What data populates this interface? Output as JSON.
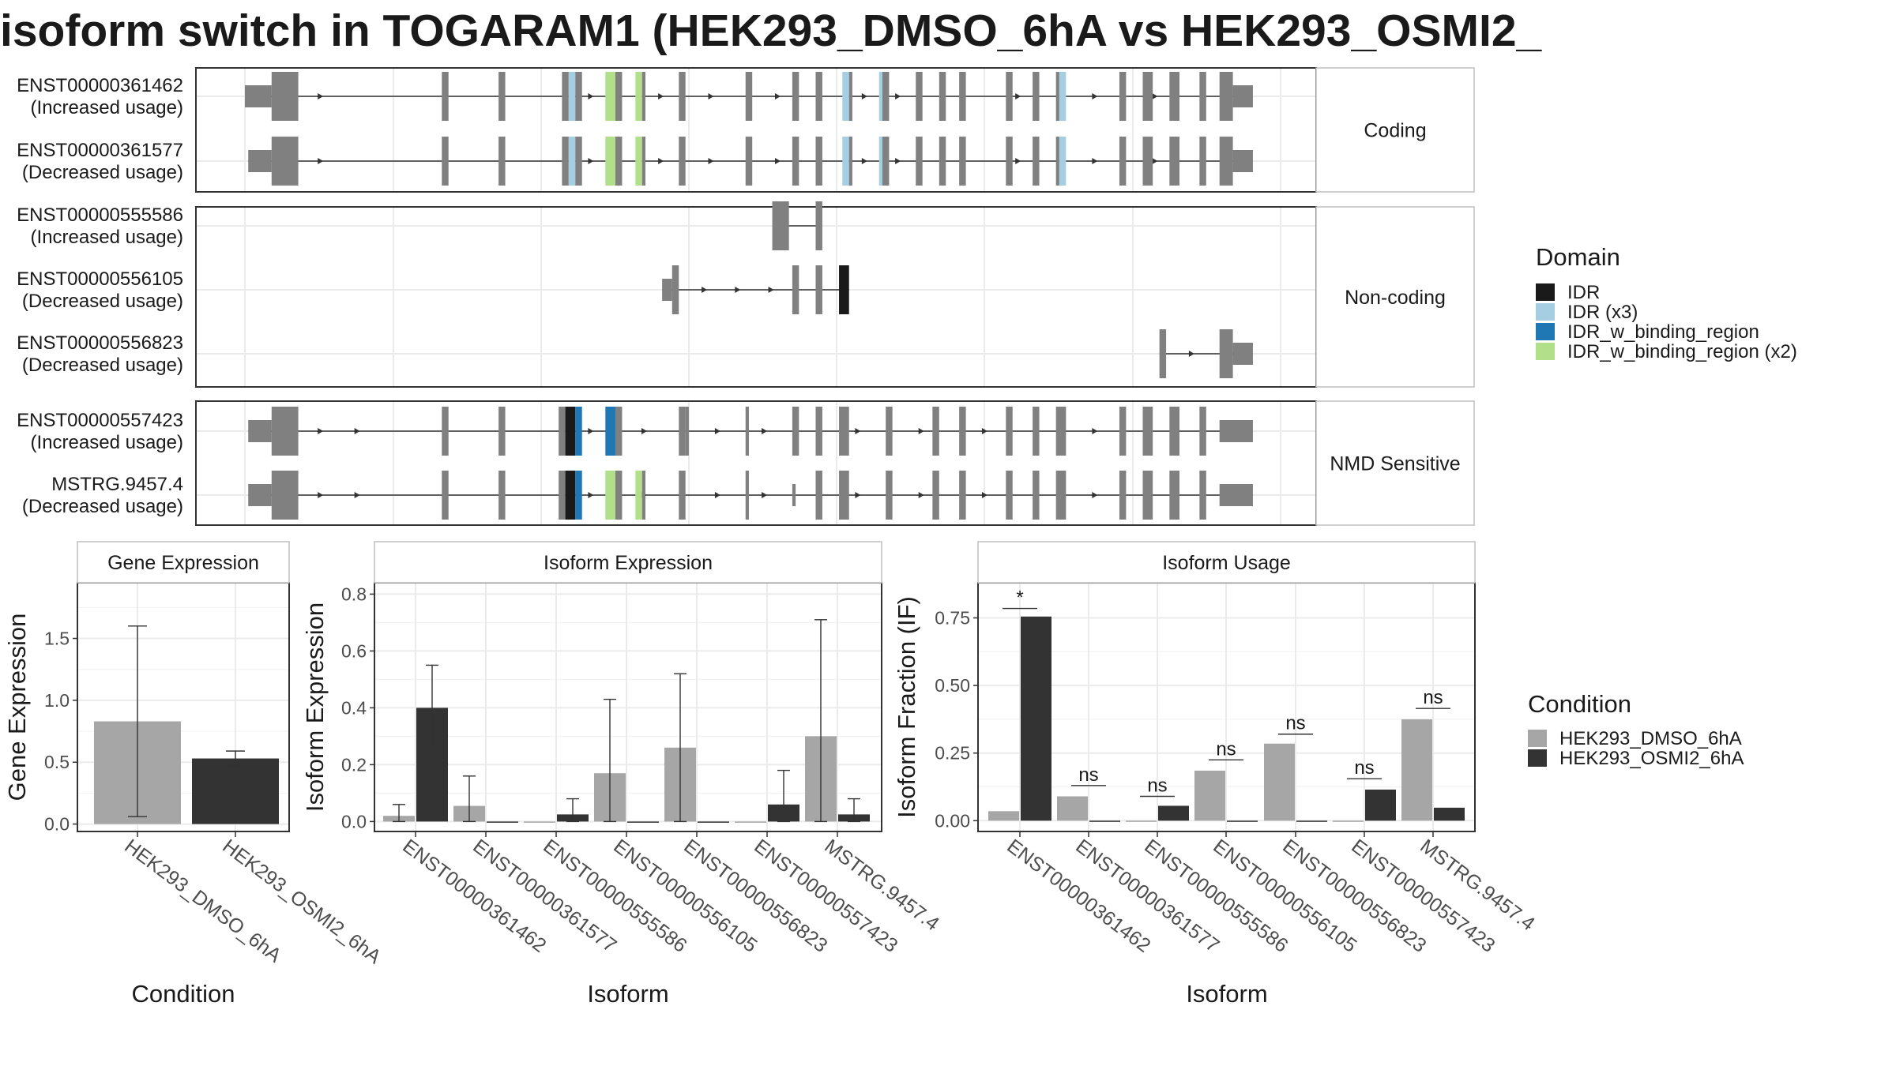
{
  "title": "isoform switch in TOGARAM1 (HEK293_DMSO_6hA vs HEK293_OSMI2_",
  "colors": {
    "exon": "#808080",
    "IDR": "#1a1a1a",
    "IDR (x3)": "#a6cee3",
    "IDR_w_binding_region": "#1f78b4",
    "IDR_w_binding_region (x2)": "#b2df8a",
    "dmso": "#a6a6a6",
    "osmi": "#333333",
    "panel_border": "#333333",
    "strip_border": "#bfbfbf",
    "grid": "#ebebeb"
  },
  "structure": {
    "groups": [
      {
        "label": "Coding",
        "tracks": [
          {
            "id": "ENST00000361462",
            "usage": "(Increased usage)",
            "exons": [
              [
                0,
                4,
                "m"
              ],
              [
                4,
                8,
                "b"
              ],
              [
                29.5,
                30.5,
                "b"
              ],
              [
                38,
                39,
                "b"
              ],
              [
                47.5,
                48.5,
                "b"
              ],
              [
                48.5,
                49.5,
                "IDR (x3)"
              ],
              [
                49.5,
                50.5,
                "b"
              ],
              [
                54,
                55.5,
                "IDR_w_binding_region (x2)"
              ],
              [
                55.5,
                56.5,
                "b"
              ],
              [
                58.5,
                59.5,
                "IDR_w_binding_region (x2)"
              ],
              [
                59.5,
                60,
                "b"
              ],
              [
                65,
                66,
                "b"
              ],
              [
                75,
                76,
                "b"
              ],
              [
                82,
                83,
                "b"
              ],
              [
                85.5,
                86.5,
                "b"
              ],
              [
                89.5,
                90.5,
                "IDR (x3)"
              ],
              [
                90.5,
                91,
                "b"
              ],
              [
                95,
                95.5,
                "IDR (x3)"
              ],
              [
                95.5,
                96.5,
                "b"
              ],
              [
                100.5,
                101.5,
                "b"
              ],
              [
                104,
                105,
                "b"
              ],
              [
                107,
                108,
                "b"
              ],
              [
                114,
                115,
                "b"
              ],
              [
                118,
                119,
                "b"
              ],
              [
                121.5,
                122,
                "b"
              ],
              [
                122,
                123,
                "IDR (x3)"
              ],
              [
                131,
                132,
                "b"
              ],
              [
                134.5,
                136,
                "b"
              ],
              [
                138.5,
                140,
                "b"
              ],
              [
                143,
                144,
                "b"
              ],
              [
                146,
                148,
                "b"
              ],
              [
                148,
                151,
                "m"
              ]
            ],
            "arrows": [
              7.5,
              11.5,
              52,
              62.5,
              70,
              80,
              93,
              98,
              116,
              127.5,
              136.5
            ]
          },
          {
            "id": "ENST00000361577",
            "usage": "(Decreased usage)",
            "exons": [
              [
                0.5,
                4,
                "m"
              ],
              [
                4,
                8,
                "b"
              ],
              [
                29.5,
                30.5,
                "b"
              ],
              [
                38,
                39,
                "b"
              ],
              [
                47.5,
                48.5,
                "b"
              ],
              [
                48.5,
                49.5,
                "IDR (x3)"
              ],
              [
                49.5,
                50.5,
                "b"
              ],
              [
                54,
                55.5,
                "IDR_w_binding_region (x2)"
              ],
              [
                55.5,
                56.5,
                "b"
              ],
              [
                58.5,
                59.5,
                "IDR_w_binding_region (x2)"
              ],
              [
                59.5,
                60,
                "b"
              ],
              [
                65,
                66,
                "b"
              ],
              [
                75,
                76,
                "b"
              ],
              [
                82,
                83,
                "b"
              ],
              [
                85.5,
                86.5,
                "b"
              ],
              [
                89.5,
                90.5,
                "IDR (x3)"
              ],
              [
                90.5,
                91,
                "b"
              ],
              [
                95,
                95.5,
                "IDR (x3)"
              ],
              [
                95.5,
                96.5,
                "b"
              ],
              [
                100.5,
                101.5,
                "b"
              ],
              [
                104,
                105,
                "b"
              ],
              [
                107,
                108,
                "b"
              ],
              [
                114,
                115,
                "b"
              ],
              [
                118,
                119,
                "b"
              ],
              [
                121.5,
                122,
                "b"
              ],
              [
                122,
                123,
                "IDR (x3)"
              ],
              [
                131,
                132,
                "b"
              ],
              [
                134.5,
                136,
                "b"
              ],
              [
                138.5,
                140,
                "b"
              ],
              [
                143,
                144,
                "b"
              ],
              [
                146,
                148,
                "b"
              ],
              [
                148,
                151,
                "m"
              ]
            ],
            "arrows": [
              7.5,
              11.5,
              52,
              62.5,
              70,
              80,
              93,
              98,
              116,
              127.5,
              136.5
            ]
          }
        ]
      },
      {
        "label": "Non-coding",
        "tracks": [
          {
            "id": "ENST00000555586",
            "usage": "(Increased usage)",
            "exons": [
              [
                79,
                81.5,
                "b"
              ],
              [
                85.5,
                86.5,
                "b"
              ]
            ],
            "arrows": []
          },
          {
            "id": "ENST00000556105",
            "usage": "(Decreased usage)",
            "exons": [
              [
                62.5,
                64,
                "m"
              ],
              [
                64,
                65,
                "b"
              ],
              [
                82,
                83,
                "b"
              ],
              [
                85.5,
                86.5,
                "b"
              ],
              [
                89,
                90.5,
                "IDR"
              ]
            ],
            "arrows": [
              69,
              74,
              79
            ]
          },
          {
            "id": "ENST00000556823",
            "usage": "(Decreased usage)",
            "exons": [
              [
                137,
                138,
                "b"
              ],
              [
                146,
                148,
                "b"
              ],
              [
                148,
                151,
                "m"
              ]
            ],
            "arrows": [
              142
            ]
          }
        ]
      },
      {
        "label": "NMD Sensitive",
        "tracks": [
          {
            "id": "ENST00000557423",
            "usage": "(Increased usage)",
            "exons": [
              [
                0.5,
                4,
                "m"
              ],
              [
                4,
                8,
                "b"
              ],
              [
                29.5,
                30.5,
                "b"
              ],
              [
                38,
                39,
                "b"
              ],
              [
                47,
                48,
                "b"
              ],
              [
                48,
                49.5,
                "IDR"
              ],
              [
                49.5,
                50.5,
                "IDR_w_binding_region"
              ],
              [
                54,
                55.5,
                "IDR_w_binding_region"
              ],
              [
                55.5,
                56.5,
                "b"
              ],
              [
                65,
                66,
                "b"
              ],
              [
                66,
                66.5,
                "b"
              ],
              [
                75,
                75.5,
                "b"
              ],
              [
                82,
                83,
                "b"
              ],
              [
                85.5,
                86.5,
                "b"
              ],
              [
                89,
                90.5,
                "b"
              ],
              [
                96,
                97,
                "b"
              ],
              [
                103,
                104,
                "b"
              ],
              [
                107,
                108,
                "b"
              ],
              [
                114,
                115,
                "b"
              ],
              [
                118,
                119,
                "b"
              ],
              [
                121.5,
                123,
                "b"
              ],
              [
                131,
                132,
                "b"
              ],
              [
                134.5,
                136,
                "b"
              ],
              [
                138.5,
                140,
                "b"
              ],
              [
                143,
                144,
                "b"
              ],
              [
                146,
                151,
                "m"
              ]
            ],
            "arrows": [
              11.5,
              17,
              52,
              60,
              71,
              78,
              92,
              101.5,
              111,
              127.5
            ]
          },
          {
            "id": "MSTRG.9457.4",
            "usage": "(Decreased usage)",
            "exons": [
              [
                0.5,
                4,
                "m"
              ],
              [
                4,
                8,
                "b"
              ],
              [
                29.5,
                30.5,
                "b"
              ],
              [
                38,
                39,
                "b"
              ],
              [
                47,
                48,
                "b"
              ],
              [
                48,
                49.5,
                "IDR"
              ],
              [
                49.5,
                50.5,
                "IDR_w_binding_region"
              ],
              [
                54,
                55.5,
                "IDR_w_binding_region (x2)"
              ],
              [
                55.5,
                56.5,
                "b"
              ],
              [
                58.5,
                59.5,
                "IDR_w_binding_region (x2)"
              ],
              [
                59.5,
                60,
                "b"
              ],
              [
                65,
                66,
                "b"
              ],
              [
                75,
                75.5,
                "b"
              ],
              [
                82,
                82.5,
                "m"
              ],
              [
                85.5,
                86.5,
                "b"
              ],
              [
                89,
                90.5,
                "b"
              ],
              [
                96,
                97,
                "b"
              ],
              [
                103,
                104,
                "b"
              ],
              [
                107,
                108,
                "b"
              ],
              [
                114,
                115,
                "b"
              ],
              [
                118,
                119,
                "b"
              ],
              [
                121.5,
                123,
                "b"
              ],
              [
                131,
                132,
                "b"
              ],
              [
                134.5,
                136,
                "b"
              ],
              [
                138.5,
                140,
                "b"
              ],
              [
                143,
                144,
                "b"
              ],
              [
                146,
                151,
                "m"
              ]
            ],
            "arrows": [
              11.5,
              17,
              52,
              60,
              71,
              78,
              92,
              101.5,
              111,
              127.5
            ]
          }
        ]
      }
    ]
  },
  "domain_legend": {
    "title": "Domain",
    "items": [
      "IDR",
      "IDR (x3)",
      "IDR_w_binding_region",
      "IDR_w_binding_region (x2)"
    ]
  },
  "condition_legend": {
    "title": "Condition",
    "items": [
      {
        "label": "HEK293_DMSO_6hA",
        "key": "dmso"
      },
      {
        "label": "HEK293_OSMI2_6hA",
        "key": "osmi"
      }
    ]
  },
  "chart_data": [
    {
      "type": "bar",
      "title": "Gene Expression",
      "xlabel": "Condition",
      "ylabel": "Gene Expression",
      "categories": [
        "HEK293_DMSO_6hA",
        "HEK293_OSMI2_6hA"
      ],
      "values": [
        0.83,
        0.53
      ],
      "error": [
        [
          0.06,
          1.6
        ],
        [
          0.47,
          0.59
        ]
      ],
      "ylim": [
        -0.06,
        1.95
      ],
      "yticks": [
        "0.0",
        "0.5",
        "1.0",
        "1.5"
      ],
      "ytick_values": [
        0,
        0.5,
        1.0,
        1.5
      ]
    },
    {
      "type": "bar",
      "title": "Isoform Expression",
      "xlabel": "Isoform",
      "ylabel": "Isoform Expression",
      "categories": [
        "ENST00000361462",
        "ENST00000361577",
        "ENST00000555586",
        "ENST00000556105",
        "ENST00000556823",
        "ENST00000557423",
        "MSTRG.9457.4"
      ],
      "series": [
        {
          "name": "HEK293_DMSO_6hA",
          "values": [
            0.02,
            0.055,
            0,
            0.17,
            0.26,
            0,
            0.3
          ],
          "error": [
            [
              0.0,
              0.06
            ],
            [
              0.0,
              0.16
            ],
            null,
            [
              0.0,
              0.43
            ],
            [
              0.0,
              0.52
            ],
            null,
            [
              0.0,
              0.71
            ]
          ]
        },
        {
          "name": "HEK293_OSMI2_6hA",
          "values": [
            0.4,
            0,
            0.025,
            0,
            0,
            0.06,
            0.025
          ],
          "error": [
            [
              0.25,
              0.55
            ],
            null,
            [
              0.0,
              0.08
            ],
            null,
            null,
            [
              0.0,
              0.18
            ],
            [
              0.0,
              0.08
            ]
          ]
        }
      ],
      "ylim": [
        -0.035,
        0.84
      ],
      "yticks": [
        "0.0",
        "0.2",
        "0.4",
        "0.6",
        "0.8"
      ],
      "ytick_values": [
        0,
        0.2,
        0.4,
        0.6,
        0.8
      ]
    },
    {
      "type": "bar",
      "title": "Isoform Usage",
      "xlabel": "Isoform",
      "ylabel": "Isoform Fraction (IF)",
      "categories": [
        "ENST00000361462",
        "ENST00000361577",
        "ENST00000555586",
        "ENST00000556105",
        "ENST00000556823",
        "ENST00000557423",
        "MSTRG.9457.4"
      ],
      "series": [
        {
          "name": "HEK293_DMSO_6hA",
          "values": [
            0.035,
            0.09,
            0,
            0.185,
            0.285,
            0,
            0.375
          ]
        },
        {
          "name": "HEK293_OSMI2_6hA",
          "values": [
            0.755,
            0,
            0.055,
            0,
            0,
            0.115,
            0.048
          ]
        }
      ],
      "significance": [
        {
          "label": "*",
          "level": 0.785
        },
        {
          "label": "ns",
          "level": 0.13
        },
        {
          "label": "ns",
          "level": 0.09
        },
        {
          "label": "ns",
          "level": 0.225
        },
        {
          "label": "ns",
          "level": 0.32
        },
        {
          "label": "ns",
          "level": 0.155
        },
        {
          "label": "ns",
          "level": 0.415
        }
      ],
      "ylim": [
        -0.04,
        0.88
      ],
      "yticks": [
        "0.00",
        "0.25",
        "0.50",
        "0.75"
      ],
      "ytick_values": [
        0,
        0.25,
        0.5,
        0.75
      ]
    }
  ]
}
